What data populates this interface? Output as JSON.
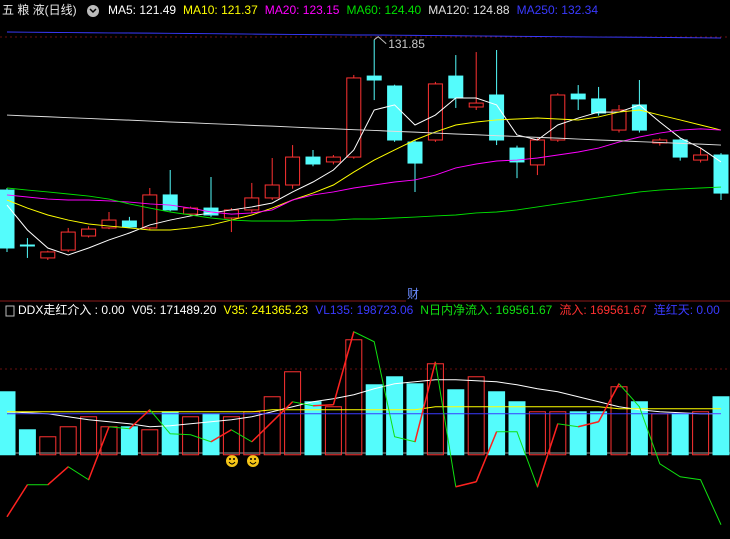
{
  "chart_data": [
    {
      "type": "candlestick",
      "title": "五 粮 液(日线)",
      "open": [
        123.83,
        120.9,
        120.21,
        120.63,
        121.38,
        121.81,
        122.18,
        121.81,
        123.57,
        122.55,
        122.87,
        122.34,
        122.77,
        123.41,
        124.1,
        125.59,
        125.33,
        125.59,
        129.91,
        129.38,
        126.39,
        126.5,
        129.91,
        128.26,
        128.9,
        126.07,
        125.17,
        126.5,
        128.95,
        128.69,
        127.03,
        128.37,
        126.34,
        126.5,
        125.43,
        125.7
      ],
      "high": [
        123.94,
        121.27,
        120.6,
        121.81,
        121.9,
        122.66,
        122.4,
        123.94,
        124.9,
        122.95,
        124.53,
        122.87,
        124.21,
        125.54,
        126.23,
        125.97,
        125.7,
        129.97,
        131.85,
        129.45,
        126.5,
        129.6,
        131.03,
        131.19,
        131.3,
        126.2,
        126.6,
        129.0,
        129.43,
        129.33,
        128.37,
        129.7,
        126.6,
        126.6,
        126.07,
        125.8
      ],
      "low": [
        120.53,
        120.21,
        120.1,
        120.53,
        121.3,
        121.75,
        121.8,
        121.7,
        122.7,
        122.45,
        122.4,
        121.59,
        122.6,
        123.3,
        123.9,
        125.1,
        125.2,
        125.5,
        128.63,
        126.4,
        123.73,
        126.4,
        128.21,
        128.1,
        126.23,
        124.47,
        124.63,
        126.4,
        128.1,
        127.8,
        126.9,
        126.9,
        126.2,
        125.4,
        125.3,
        123.3
      ],
      "close": [
        120.74,
        120.85,
        120.53,
        121.59,
        121.75,
        122.23,
        121.86,
        123.57,
        122.77,
        122.87,
        122.5,
        122.77,
        123.41,
        124.1,
        125.59,
        125.22,
        125.59,
        129.81,
        129.7,
        126.5,
        125.27,
        129.49,
        128.74,
        128.47,
        126.5,
        125.33,
        126.5,
        128.9,
        128.69,
        127.94,
        128.1,
        127.03,
        126.5,
        125.59,
        125.7,
        123.67
      ],
      "up_color": "#ff3232",
      "down_color": "#54fcfc",
      "ylim": [
        118.5,
        132.9
      ],
      "marker_text": "财",
      "series": [
        {
          "name": "MA5: 121.49",
          "color": "#ffffff",
          "values": [
            123.03,
            121.7,
            120.74,
            120.37,
            120.74,
            121.17,
            121.54,
            121.97,
            122.23,
            122.45,
            122.61,
            122.77,
            122.93,
            123.14,
            123.73,
            124.26,
            124.9,
            125.97,
            128.1,
            128.37,
            127.3,
            127.83,
            128.74,
            128.74,
            128.37,
            126.77,
            126.5,
            127.3,
            127.67,
            127.99,
            127.99,
            128.37,
            127.46,
            126.61,
            126.07,
            125.33
          ]
        },
        {
          "name": "MA10: 121.37",
          "color": "#ffff00",
          "values": [
            123.3,
            122.87,
            122.5,
            122.23,
            122.02,
            121.91,
            121.81,
            121.7,
            121.7,
            121.81,
            121.97,
            122.23,
            122.5,
            122.87,
            123.3,
            123.67,
            124.1,
            124.79,
            125.43,
            125.97,
            126.5,
            126.93,
            127.3,
            127.46,
            127.57,
            127.62,
            127.67,
            127.62,
            127.57,
            127.73,
            127.99,
            128.1,
            127.83,
            127.57,
            127.3,
            127.03
          ]
        },
        {
          "name": "MA20: 123.15",
          "color": "#ff00ff",
          "values": [
            123.57,
            123.46,
            123.35,
            123.3,
            123.3,
            123.25,
            123.19,
            123.09,
            123.03,
            122.87,
            122.66,
            122.55,
            122.61,
            122.77,
            123.3,
            123.57,
            123.73,
            123.94,
            124.1,
            124.26,
            124.37,
            124.63,
            125.01,
            125.22,
            125.38,
            125.43,
            125.54,
            125.7,
            125.86,
            126.07,
            126.39,
            126.66,
            126.87,
            127.03,
            127.09,
            127.03
          ]
        },
        {
          "name": "MA60: 124.40",
          "color": "#00e000",
          "values": [
            123.94,
            123.83,
            123.73,
            123.62,
            123.51,
            123.35,
            123.09,
            122.87,
            122.66,
            122.5,
            122.34,
            122.23,
            122.18,
            122.18,
            122.18,
            122.23,
            122.23,
            122.29,
            122.29,
            122.34,
            122.39,
            122.45,
            122.5,
            122.61,
            122.66,
            122.77,
            122.93,
            123.09,
            123.25,
            123.41,
            123.57,
            123.73,
            123.83,
            123.89,
            123.94,
            123.99
          ]
        },
        {
          "name": "MA120: 124.88",
          "color": "#e0e0e0",
          "values": [
            127.83,
            127.78,
            127.74,
            127.69,
            127.65,
            127.6,
            127.56,
            127.51,
            127.46,
            127.42,
            127.37,
            127.33,
            127.28,
            127.24,
            127.19,
            127.14,
            127.1,
            127.05,
            127.01,
            126.96,
            126.92,
            126.87,
            126.82,
            126.78,
            126.73,
            126.69,
            126.64,
            126.6,
            126.55,
            126.5,
            126.46,
            126.41,
            126.37,
            126.32,
            126.28,
            126.23
          ]
        },
        {
          "name": "MA250: 132.34",
          "color": "#3a3aff",
          "values": [
            132.26,
            132.25,
            132.24,
            132.23,
            132.22,
            132.21,
            132.21,
            132.2,
            132.19,
            132.18,
            132.17,
            132.16,
            132.15,
            132.14,
            132.13,
            132.12,
            132.11,
            132.1,
            132.1,
            132.09,
            132.08,
            132.07,
            132.06,
            132.05,
            132.04,
            132.03,
            132.02,
            132.01,
            132.0,
            131.99,
            131.99,
            131.98,
            131.97,
            131.96,
            131.95,
            131.94
          ]
        }
      ]
    },
    {
      "type": "bar",
      "values": [
        224400,
        89000,
        64100,
        99700,
        135300,
        99700,
        99700,
        89000,
        153100,
        135300,
        146000,
        135300,
        153100,
        206600,
        295600,
        188800,
        171000,
        409600,
        249300,
        277800,
        252900,
        324100,
        231500,
        277800,
        224400,
        188800,
        153100,
        153100,
        153100,
        153100,
        242200,
        188800,
        146000,
        146000,
        153100,
        206600
      ],
      "ylim": [
        -300000,
        480000
      ],
      "header": [
        {
          "text": "DDX走红介入 : 0.00",
          "color": "#ffffff"
        },
        {
          "text": "流入: 169561.67",
          "color": "#ff3030"
        },
        {
          "text": "连红天: 0.00",
          "color": "#3a3aff"
        }
      ],
      "series": [
        {
          "name": "V05: 171489.20",
          "color": "#ffffff",
          "values": [
            153100,
            149600,
            146000,
            135300,
            124700,
            117500,
            110400,
            99700,
            103300,
            110400,
            117500,
            124700,
            135300,
            153100,
            171000,
            188800,
            199400,
            213700,
            235100,
            252900,
            260000,
            267100,
            267100,
            263600,
            260000,
            249300,
            235100,
            224400,
            206600,
            188800,
            171000,
            160300,
            153100,
            149600,
            146000,
            146000
          ]
        },
        {
          "name": "V35: 241365.23",
          "color": "#ffff00",
          "values": [
            153100,
            153100,
            153100,
            153100,
            153100,
            153100,
            153100,
            153100,
            153100,
            153100,
            153100,
            153100,
            153100,
            160300,
            160300,
            160300,
            160300,
            160300,
            160300,
            160300,
            160300,
            171000,
            171000,
            171000,
            171000,
            171000,
            171000,
            171000,
            171000,
            171000,
            163800,
            163800,
            163800,
            163800,
            163800,
            163800
          ]
        },
        {
          "name": "VL135: 198723.06",
          "color": "#3a3aff",
          "values": [
            146000,
            146000,
            146000,
            146000,
            146000,
            146000,
            146000,
            146000,
            146000,
            146000,
            146000,
            146000,
            146000,
            146000,
            146000,
            146000,
            146000,
            146000,
            146000,
            146000,
            146000,
            146000,
            146000,
            146000,
            146000,
            146000,
            146000,
            146000,
            146000,
            146000,
            146000,
            146000,
            146000,
            146000,
            146000,
            146000
          ]
        },
        {
          "name": "N日内净流入: 169561.67",
          "color": "#10e010",
          "rise_color": "#ff2020",
          "values": [
            -220800,
            -106800,
            -106800,
            -42700,
            -89000,
            99700,
            92600,
            160300,
            74800,
            71200,
            46300,
            89000,
            46300,
            117500,
            188800,
            174500,
            178100,
            438100,
            402500,
            64100,
            46300,
            331200,
            -114000,
            -96200,
            81900,
            81900,
            -114000,
            110400,
            99700,
            117500,
            252900,
            171000,
            -32100,
            -78400,
            -89000,
            -249300
          ]
        }
      ]
    }
  ]
}
